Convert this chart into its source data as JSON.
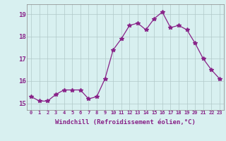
{
  "x": [
    0,
    1,
    2,
    3,
    4,
    5,
    6,
    7,
    8,
    9,
    10,
    11,
    12,
    13,
    14,
    15,
    16,
    17,
    18,
    19,
    20,
    21,
    22,
    23
  ],
  "y": [
    15.3,
    15.1,
    15.1,
    15.4,
    15.6,
    15.6,
    15.6,
    15.2,
    15.3,
    16.1,
    17.4,
    17.9,
    18.5,
    18.6,
    18.3,
    18.8,
    19.1,
    18.4,
    18.5,
    18.3,
    17.7,
    17.0,
    16.5,
    16.1
  ],
  "line_color": "#882288",
  "marker": "*",
  "marker_size": 4,
  "bg_color": "#d8f0f0",
  "grid_color": "#b0c8c8",
  "xlabel": "Windchill (Refroidissement éolien,°C)",
  "xlabel_color": "#882288",
  "tick_color": "#882288",
  "ylabel_ticks": [
    15,
    16,
    17,
    18,
    19
  ],
  "xlim": [
    -0.5,
    23.5
  ],
  "ylim": [
    14.7,
    19.45
  ],
  "title": ""
}
